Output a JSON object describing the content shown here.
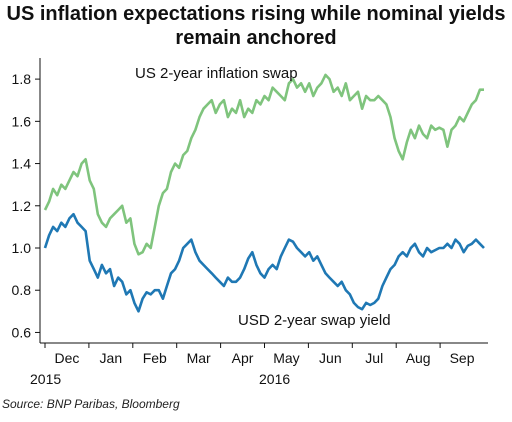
{
  "chart_data": {
    "type": "line",
    "title": "US inflation expectations rising while nominal yields remain anchored",
    "source": "Source:  BNP Paribas, Bloomberg",
    "ylim": [
      0.55,
      1.9
    ],
    "y_ticks": [
      "0.6",
      "0.8",
      "1.0",
      "1.2",
      "1.4",
      "1.6",
      "1.8"
    ],
    "x_ticks": [
      "Dec",
      "Jan",
      "Feb",
      "Mar",
      "Apr",
      "May",
      "Jun",
      "Jul",
      "Aug",
      "Sep"
    ],
    "x_year_labels": [
      "2015",
      "2016"
    ],
    "grid": false,
    "series": [
      {
        "name": "US 2-year inflation swap",
        "color": "#7fc47d",
        "values": [
          1.18,
          1.22,
          1.28,
          1.25,
          1.3,
          1.28,
          1.32,
          1.36,
          1.34,
          1.4,
          1.42,
          1.32,
          1.28,
          1.16,
          1.12,
          1.1,
          1.14,
          1.16,
          1.18,
          1.2,
          1.12,
          1.14,
          1.02,
          0.97,
          0.98,
          1.02,
          1.0,
          1.1,
          1.2,
          1.26,
          1.28,
          1.36,
          1.4,
          1.38,
          1.44,
          1.46,
          1.52,
          1.56,
          1.62,
          1.66,
          1.68,
          1.7,
          1.64,
          1.68,
          1.7,
          1.62,
          1.66,
          1.64,
          1.7,
          1.62,
          1.66,
          1.64,
          1.7,
          1.68,
          1.72,
          1.7,
          1.76,
          1.74,
          1.72,
          1.7,
          1.78,
          1.8,
          1.76,
          1.78,
          1.74,
          1.78,
          1.72,
          1.76,
          1.78,
          1.82,
          1.8,
          1.74,
          1.76,
          1.72,
          1.78,
          1.7,
          1.72,
          1.74,
          1.66,
          1.72,
          1.7,
          1.7,
          1.72,
          1.7,
          1.68,
          1.62,
          1.52,
          1.46,
          1.42,
          1.5,
          1.56,
          1.52,
          1.58,
          1.54,
          1.52,
          1.58,
          1.56,
          1.57,
          1.56,
          1.48,
          1.56,
          1.58,
          1.62,
          1.6,
          1.64,
          1.68,
          1.7,
          1.75,
          1.75
        ]
      },
      {
        "name": "USD 2-year swap yield",
        "color": "#1f78b4",
        "values": [
          1.0,
          1.06,
          1.1,
          1.08,
          1.12,
          1.1,
          1.14,
          1.16,
          1.12,
          1.1,
          1.08,
          0.94,
          0.9,
          0.86,
          0.92,
          0.88,
          0.9,
          0.82,
          0.86,
          0.84,
          0.78,
          0.8,
          0.74,
          0.7,
          0.76,
          0.79,
          0.78,
          0.8,
          0.8,
          0.76,
          0.82,
          0.88,
          0.9,
          0.94,
          1.0,
          1.02,
          1.04,
          0.98,
          0.94,
          0.92,
          0.9,
          0.88,
          0.86,
          0.84,
          0.82,
          0.86,
          0.84,
          0.84,
          0.86,
          0.9,
          0.95,
          0.98,
          0.92,
          0.88,
          0.86,
          0.9,
          0.92,
          0.9,
          0.96,
          1.0,
          1.04,
          1.03,
          1.0,
          0.98,
          0.96,
          0.98,
          0.94,
          0.96,
          0.92,
          0.88,
          0.86,
          0.84,
          0.82,
          0.84,
          0.8,
          0.78,
          0.74,
          0.72,
          0.71,
          0.74,
          0.73,
          0.74,
          0.76,
          0.82,
          0.86,
          0.9,
          0.92,
          0.96,
          0.98,
          0.96,
          1.0,
          1.02,
          0.98,
          0.96,
          1.0,
          0.98,
          0.99,
          1.0,
          1.0,
          1.02,
          1.0,
          1.04,
          1.02,
          0.98,
          1.01,
          1.02,
          1.04,
          1.02,
          1.0
        ]
      }
    ]
  }
}
